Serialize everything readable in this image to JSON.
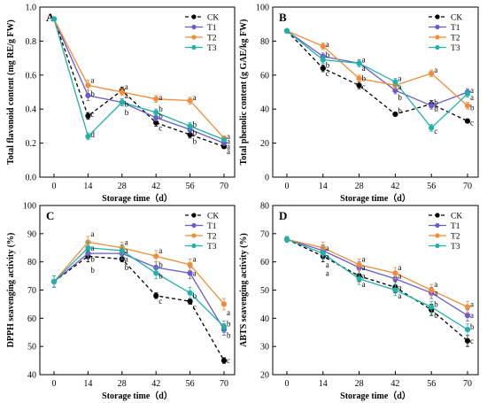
{
  "colors": {
    "CK": "#000000",
    "T1": "#6a5acd",
    "T2": "#f28c3b",
    "T3": "#20b2aa"
  },
  "chart_data": [
    {
      "type": "line",
      "panel_letter": "A",
      "xlabel": "Storage time（d）",
      "ylabel": "Total flavonoid content (mg RE/g FW)",
      "x": [
        0,
        14,
        28,
        42,
        56,
        70
      ],
      "x_ticks": [
        "0",
        "14",
        "28",
        "42",
        "56",
        "70"
      ],
      "ylim": [
        0.0,
        1.0
      ],
      "y_ticks": [
        "0.0",
        "0.2",
        "0.4",
        "0.6",
        "0.8",
        "1.0"
      ],
      "legend_position": "top-right",
      "series": [
        {
          "name": "CK",
          "values": [
            0.93,
            0.36,
            0.51,
            0.32,
            0.25,
            0.18
          ],
          "err": [
            0.01,
            0.02,
            0.02,
            0.02,
            0.02,
            0.01
          ],
          "marker": "circle",
          "dashed": true
        },
        {
          "name": "T1",
          "values": [
            0.93,
            0.48,
            0.44,
            0.35,
            0.28,
            0.2
          ],
          "err": [
            0.01,
            0.03,
            0.02,
            0.02,
            0.02,
            0.01
          ],
          "marker": "circle",
          "dashed": false
        },
        {
          "name": "T2",
          "values": [
            0.93,
            0.54,
            0.5,
            0.46,
            0.45,
            0.23
          ],
          "err": [
            0.01,
            0.03,
            0.02,
            0.02,
            0.02,
            0.01
          ],
          "marker": "circle",
          "dashed": false
        },
        {
          "name": "T3",
          "values": [
            0.93,
            0.24,
            0.44,
            0.38,
            0.3,
            0.22
          ],
          "err": [
            0.01,
            0.02,
            0.02,
            0.02,
            0.02,
            0.01
          ],
          "marker": "circle",
          "dashed": false
        }
      ],
      "annotations": [
        {
          "x": 14,
          "y": 0.57,
          "text": "a"
        },
        {
          "x": 14,
          "y": 0.49,
          "text": "b"
        },
        {
          "x": 14,
          "y": 0.37,
          "text": "c"
        },
        {
          "x": 14,
          "y": 0.25,
          "text": "d"
        },
        {
          "x": 28,
          "y": 0.53,
          "text": "a"
        },
        {
          "x": 28,
          "y": 0.48,
          "text": "a"
        },
        {
          "x": 28,
          "y": 0.43,
          "text": "b"
        },
        {
          "x": 28,
          "y": 0.38,
          "text": "b"
        },
        {
          "x": 42,
          "y": 0.47,
          "text": "a"
        },
        {
          "x": 42,
          "y": 0.4,
          "text": "b"
        },
        {
          "x": 42,
          "y": 0.36,
          "text": "b"
        },
        {
          "x": 42,
          "y": 0.29,
          "text": "c"
        },
        {
          "x": 56,
          "y": 0.47,
          "text": "a"
        },
        {
          "x": 56,
          "y": 0.31,
          "text": "b"
        },
        {
          "x": 56,
          "y": 0.26,
          "text": "b"
        },
        {
          "x": 56,
          "y": 0.21,
          "text": "b"
        },
        {
          "x": 70,
          "y": 0.24,
          "text": "a"
        },
        {
          "x": 70,
          "y": 0.21,
          "text": "a"
        },
        {
          "x": 70,
          "y": 0.18,
          "text": "a"
        },
        {
          "x": 70,
          "y": 0.15,
          "text": "a"
        }
      ]
    },
    {
      "type": "line",
      "panel_letter": "B",
      "xlabel": "Storage time（d）",
      "ylabel": "Total phenolic content (g GAE/kg FW)",
      "x": [
        0,
        14,
        28,
        42,
        56,
        70
      ],
      "x_ticks": [
        "0",
        "14",
        "28",
        "42",
        "56",
        "70"
      ],
      "ylim": [
        0,
        100
      ],
      "y_ticks": [
        "0",
        "20",
        "40",
        "60",
        "80",
        "100"
      ],
      "legend_position": "top-right",
      "series": [
        {
          "name": "CK",
          "values": [
            86,
            64,
            54,
            37,
            43,
            33
          ],
          "err": [
            1,
            2,
            2,
            1,
            2,
            1
          ],
          "marker": "circle",
          "dashed": true
        },
        {
          "name": "T1",
          "values": [
            86,
            71,
            67,
            51,
            42,
            50
          ],
          "err": [
            1,
            2,
            2,
            2,
            2,
            2
          ],
          "marker": "circle",
          "dashed": false
        },
        {
          "name": "T2",
          "values": [
            86,
            77,
            58,
            54,
            61,
            42
          ],
          "err": [
            1,
            2,
            2,
            2,
            2,
            2
          ],
          "marker": "circle",
          "dashed": false
        },
        {
          "name": "T3",
          "values": [
            86,
            69,
            67,
            56,
            29,
            49
          ],
          "err": [
            1,
            2,
            2,
            2,
            2,
            2
          ],
          "marker": "circle",
          "dashed": false
        }
      ],
      "annotations": [
        {
          "x": 14,
          "y": 78,
          "text": "a"
        },
        {
          "x": 14,
          "y": 72,
          "text": "b"
        },
        {
          "x": 14,
          "y": 66,
          "text": "b"
        },
        {
          "x": 14,
          "y": 61,
          "text": "c"
        },
        {
          "x": 28,
          "y": 69,
          "text": "a"
        },
        {
          "x": 28,
          "y": 64,
          "text": "a"
        },
        {
          "x": 28,
          "y": 58,
          "text": "b"
        },
        {
          "x": 28,
          "y": 53,
          "text": "c"
        },
        {
          "x": 42,
          "y": 58,
          "text": "a"
        },
        {
          "x": 42,
          "y": 53,
          "text": "a"
        },
        {
          "x": 42,
          "y": 47,
          "text": "b"
        },
        {
          "x": 42,
          "y": 39,
          "text": "b"
        },
        {
          "x": 56,
          "y": 63,
          "text": "a"
        },
        {
          "x": 56,
          "y": 44,
          "text": "b"
        },
        {
          "x": 56,
          "y": 40,
          "text": "b"
        },
        {
          "x": 56,
          "y": 27,
          "text": "c"
        },
        {
          "x": 70,
          "y": 51,
          "text": "a"
        },
        {
          "x": 70,
          "y": 47,
          "text": "a"
        },
        {
          "x": 70,
          "y": 41,
          "text": "b"
        },
        {
          "x": 70,
          "y": 32,
          "text": "c"
        }
      ]
    },
    {
      "type": "line",
      "panel_letter": "C",
      "xlabel": "Storage time（d）",
      "ylabel": "DPPH  seavenging activity (%)",
      "x": [
        0,
        14,
        28,
        42,
        56,
        70
      ],
      "x_ticks": [
        "0",
        "14",
        "28",
        "42",
        "56",
        "70"
      ],
      "ylim": [
        40,
        100
      ],
      "y_ticks": [
        "40",
        "50",
        "60",
        "70",
        "80",
        "90",
        "100"
      ],
      "legend_position": "top-right",
      "series": [
        {
          "name": "CK",
          "values": [
            73,
            82,
            81,
            68,
            66,
            45
          ],
          "err": [
            2,
            2,
            1,
            1,
            1,
            1
          ],
          "marker": "circle",
          "dashed": true
        },
        {
          "name": "T1",
          "values": [
            73,
            83,
            83,
            78,
            76,
            56
          ],
          "err": [
            2,
            2,
            2,
            2,
            2,
            2
          ],
          "marker": "circle",
          "dashed": false
        },
        {
          "name": "T2",
          "values": [
            73,
            87,
            85,
            82,
            79,
            65
          ],
          "err": [
            2,
            2,
            2,
            2,
            2,
            2
          ],
          "marker": "circle",
          "dashed": false
        },
        {
          "name": "T3",
          "values": [
            73,
            85,
            84,
            76,
            69,
            57
          ],
          "err": [
            2,
            2,
            2,
            2,
            2,
            2
          ],
          "marker": "circle",
          "dashed": false
        }
      ],
      "annotations": [
        {
          "x": 14,
          "y": 90,
          "text": "a"
        },
        {
          "x": 14,
          "y": 85,
          "text": "a"
        },
        {
          "x": 14,
          "y": 81,
          "text": "b"
        },
        {
          "x": 14,
          "y": 77,
          "text": "b"
        },
        {
          "x": 28,
          "y": 87,
          "text": "a"
        },
        {
          "x": 28,
          "y": 84,
          "text": "a"
        },
        {
          "x": 28,
          "y": 81,
          "text": "a"
        },
        {
          "x": 28,
          "y": 78,
          "text": "b"
        },
        {
          "x": 42,
          "y": 84,
          "text": "a"
        },
        {
          "x": 42,
          "y": 79,
          "text": "b"
        },
        {
          "x": 42,
          "y": 75,
          "text": "b"
        },
        {
          "x": 42,
          "y": 66,
          "text": "c"
        },
        {
          "x": 56,
          "y": 81,
          "text": "a"
        },
        {
          "x": 56,
          "y": 76,
          "text": "a"
        },
        {
          "x": 56,
          "y": 68,
          "text": "b"
        },
        {
          "x": 56,
          "y": 64,
          "text": "c"
        },
        {
          "x": 70,
          "y": 62,
          "text": "a"
        },
        {
          "x": 70,
          "y": 58,
          "text": "b"
        },
        {
          "x": 70,
          "y": 54,
          "text": "b"
        },
        {
          "x": 70,
          "y": 45,
          "text": "c"
        }
      ]
    },
    {
      "type": "line",
      "panel_letter": "D",
      "xlabel": "Storage time（d）",
      "ylabel": "ABTS  seavenging activity (%)",
      "x": [
        0,
        14,
        28,
        42,
        56,
        70
      ],
      "x_ticks": [
        "0",
        "14",
        "28",
        "42",
        "56",
        "70"
      ],
      "ylim": [
        20,
        80
      ],
      "y_ticks": [
        "20",
        "30",
        "40",
        "50",
        "60",
        "70",
        "80"
      ],
      "legend_position": "top-right",
      "series": [
        {
          "name": "CK",
          "values": [
            68,
            62,
            55,
            51,
            43,
            32
          ],
          "err": [
            1,
            2,
            2,
            2,
            2,
            2
          ],
          "marker": "circle",
          "dashed": true
        },
        {
          "name": "T1",
          "values": [
            68,
            64,
            58,
            54,
            49,
            41
          ],
          "err": [
            1,
            2,
            2,
            2,
            2,
            2
          ],
          "marker": "circle",
          "dashed": false
        },
        {
          "name": "T2",
          "values": [
            68,
            65,
            59,
            56,
            50,
            44
          ],
          "err": [
            1,
            2,
            2,
            2,
            2,
            2
          ],
          "marker": "circle",
          "dashed": false
        },
        {
          "name": "T3",
          "values": [
            68,
            63,
            54,
            50,
            44,
            36
          ],
          "err": [
            1,
            2,
            2,
            2,
            2,
            2
          ],
          "marker": "circle",
          "dashed": false
        }
      ],
      "annotations": [
        {
          "x": 14,
          "y": 65,
          "text": "a"
        },
        {
          "x": 14,
          "y": 62,
          "text": "a"
        },
        {
          "x": 14,
          "y": 59,
          "text": "a"
        },
        {
          "x": 14,
          "y": 56,
          "text": "a"
        },
        {
          "x": 28,
          "y": 61,
          "text": "a"
        },
        {
          "x": 28,
          "y": 58,
          "text": "a"
        },
        {
          "x": 28,
          "y": 55,
          "text": "a"
        },
        {
          "x": 28,
          "y": 52,
          "text": "a"
        },
        {
          "x": 42,
          "y": 58,
          "text": "a"
        },
        {
          "x": 42,
          "y": 55,
          "text": "a"
        },
        {
          "x": 42,
          "y": 51,
          "text": "a"
        },
        {
          "x": 42,
          "y": 48,
          "text": "a"
        },
        {
          "x": 56,
          "y": 52,
          "text": "a"
        },
        {
          "x": 56,
          "y": 49,
          "text": "a"
        },
        {
          "x": 56,
          "y": 45,
          "text": "b"
        },
        {
          "x": 56,
          "y": 41,
          "text": "b"
        },
        {
          "x": 70,
          "y": 45,
          "text": "a"
        },
        {
          "x": 70,
          "y": 41,
          "text": "a"
        },
        {
          "x": 70,
          "y": 37,
          "text": "b"
        },
        {
          "x": 70,
          "y": 32,
          "text": "c"
        }
      ]
    }
  ]
}
